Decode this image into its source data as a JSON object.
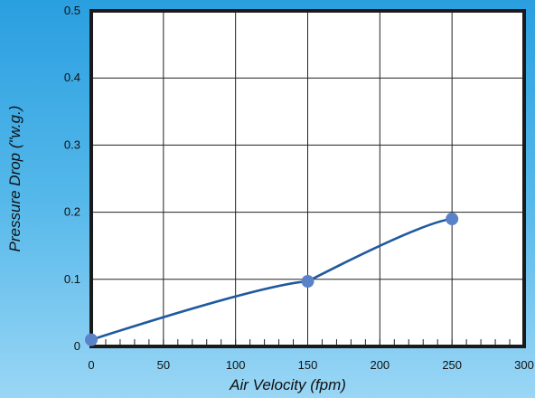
{
  "chart_data": {
    "type": "line",
    "title": "",
    "xlabel": "Air Velocity (fpm)",
    "ylabel": "Pressure Drop (\"w.g.)",
    "xlim": [
      0,
      300
    ],
    "ylim": [
      0,
      0.5
    ],
    "x_ticks": [
      0,
      50,
      100,
      150,
      200,
      250,
      300
    ],
    "x_tick_labels": [
      "0",
      "50",
      "100",
      "150",
      "200",
      "250",
      "300"
    ],
    "y_ticks": [
      0,
      0.1,
      0.2,
      0.3,
      0.4,
      0.5
    ],
    "y_tick_labels": [
      "0",
      "0.1",
      "0.2",
      "0.3",
      "0.4",
      "0.5"
    ],
    "grid": true,
    "series": [
      {
        "color": "#1f5a9e",
        "marker_color": "#5a82c8",
        "x": [
          0,
          150,
          250
        ],
        "y": [
          0.01,
          0.097,
          0.19
        ]
      }
    ]
  },
  "colors": {
    "plot_background": "#ffffff",
    "frame": "#1a1a1a",
    "grid": "#222222"
  }
}
